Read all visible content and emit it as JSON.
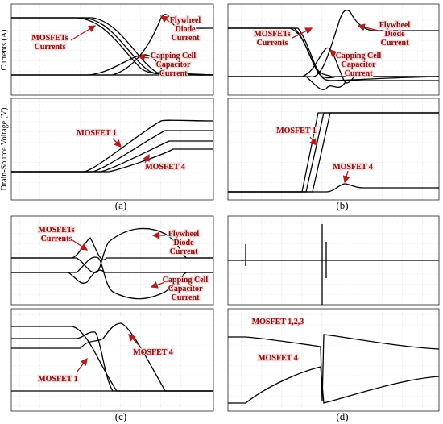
{
  "axis_labels": {
    "currents": "Currents (A)",
    "voltage": "Drain-Source Voltage (V)"
  },
  "panels": [
    {
      "label": "(a)",
      "annotations": [
        {
          "lines": [
            "MOSFETs",
            "Currents"
          ]
        },
        {
          "lines": [
            "Flywheel",
            "Diode",
            "Current"
          ]
        },
        {
          "lines": [
            "Capping Cell",
            "Capacitor",
            "Current"
          ]
        },
        {
          "lines": [
            "MOSFET 1"
          ]
        },
        {
          "lines": [
            "MOSFET 4"
          ]
        }
      ]
    },
    {
      "label": "(b)",
      "annotations": [
        {
          "lines": [
            "MOSFETs",
            "Currents"
          ]
        },
        {
          "lines": [
            "Flywheel",
            "Diode",
            "Current"
          ]
        },
        {
          "lines": [
            "Capping Cell",
            "Capacitor",
            "Current"
          ]
        },
        {
          "lines": [
            "MOSFET 1"
          ]
        },
        {
          "lines": [
            "MOSFET 4"
          ]
        }
      ]
    },
    {
      "label": "(c)",
      "annotations": [
        {
          "lines": [
            "MOSFETs",
            "Currents"
          ]
        },
        {
          "lines": [
            "Flywheel",
            "Diode",
            "Current"
          ]
        },
        {
          "lines": [
            "Capping Cell",
            "Capacitor",
            "Current"
          ]
        },
        {
          "lines": [
            "MOSFET 4"
          ]
        },
        {
          "lines": [
            "MOSFET 1"
          ]
        }
      ]
    },
    {
      "label": "(d)",
      "annotations": [
        {
          "lines": [
            "MOSFET 1,2,3"
          ]
        },
        {
          "lines": [
            "MOSFET 4"
          ]
        }
      ]
    }
  ]
}
